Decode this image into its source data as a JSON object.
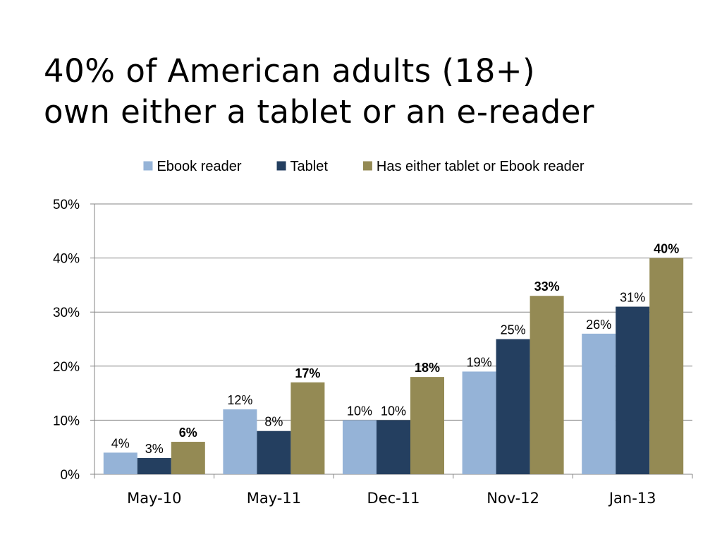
{
  "slide": {
    "title_line1": "40% of American adults (18+)",
    "title_line2": "own either a tablet or an e-reader"
  },
  "chart_data": {
    "type": "bar",
    "categories": [
      "May-10",
      "May-11",
      "Dec-11",
      "Nov-12",
      "Jan-13"
    ],
    "series": [
      {
        "name": "Ebook reader",
        "values": [
          4,
          12,
          10,
          19,
          26
        ],
        "labels": [
          "4%",
          "12%",
          "10%",
          "19%",
          "26%"
        ],
        "color": "#95b3d7",
        "bold": false
      },
      {
        "name": "Tablet",
        "values": [
          3,
          8,
          10,
          25,
          31
        ],
        "labels": [
          "3%",
          "8%",
          "10%",
          "25%",
          "31%"
        ],
        "color": "#243f60",
        "bold": false
      },
      {
        "name": "Has either tablet or Ebook reader",
        "values": [
          6,
          17,
          18,
          33,
          40
        ],
        "labels": [
          "6%",
          "17%",
          "18%",
          "33%",
          "40%"
        ],
        "color": "#948a54",
        "bold": true
      }
    ],
    "ylim": [
      0,
      50
    ],
    "yticks": [
      0,
      10,
      20,
      30,
      40,
      50
    ],
    "ytick_labels": [
      "0%",
      "10%",
      "20%",
      "30%",
      "40%",
      "50%"
    ],
    "gridlines": true,
    "legend_position": "top",
    "axis_color": "#868686",
    "title": "",
    "xlabel": "",
    "ylabel": ""
  }
}
